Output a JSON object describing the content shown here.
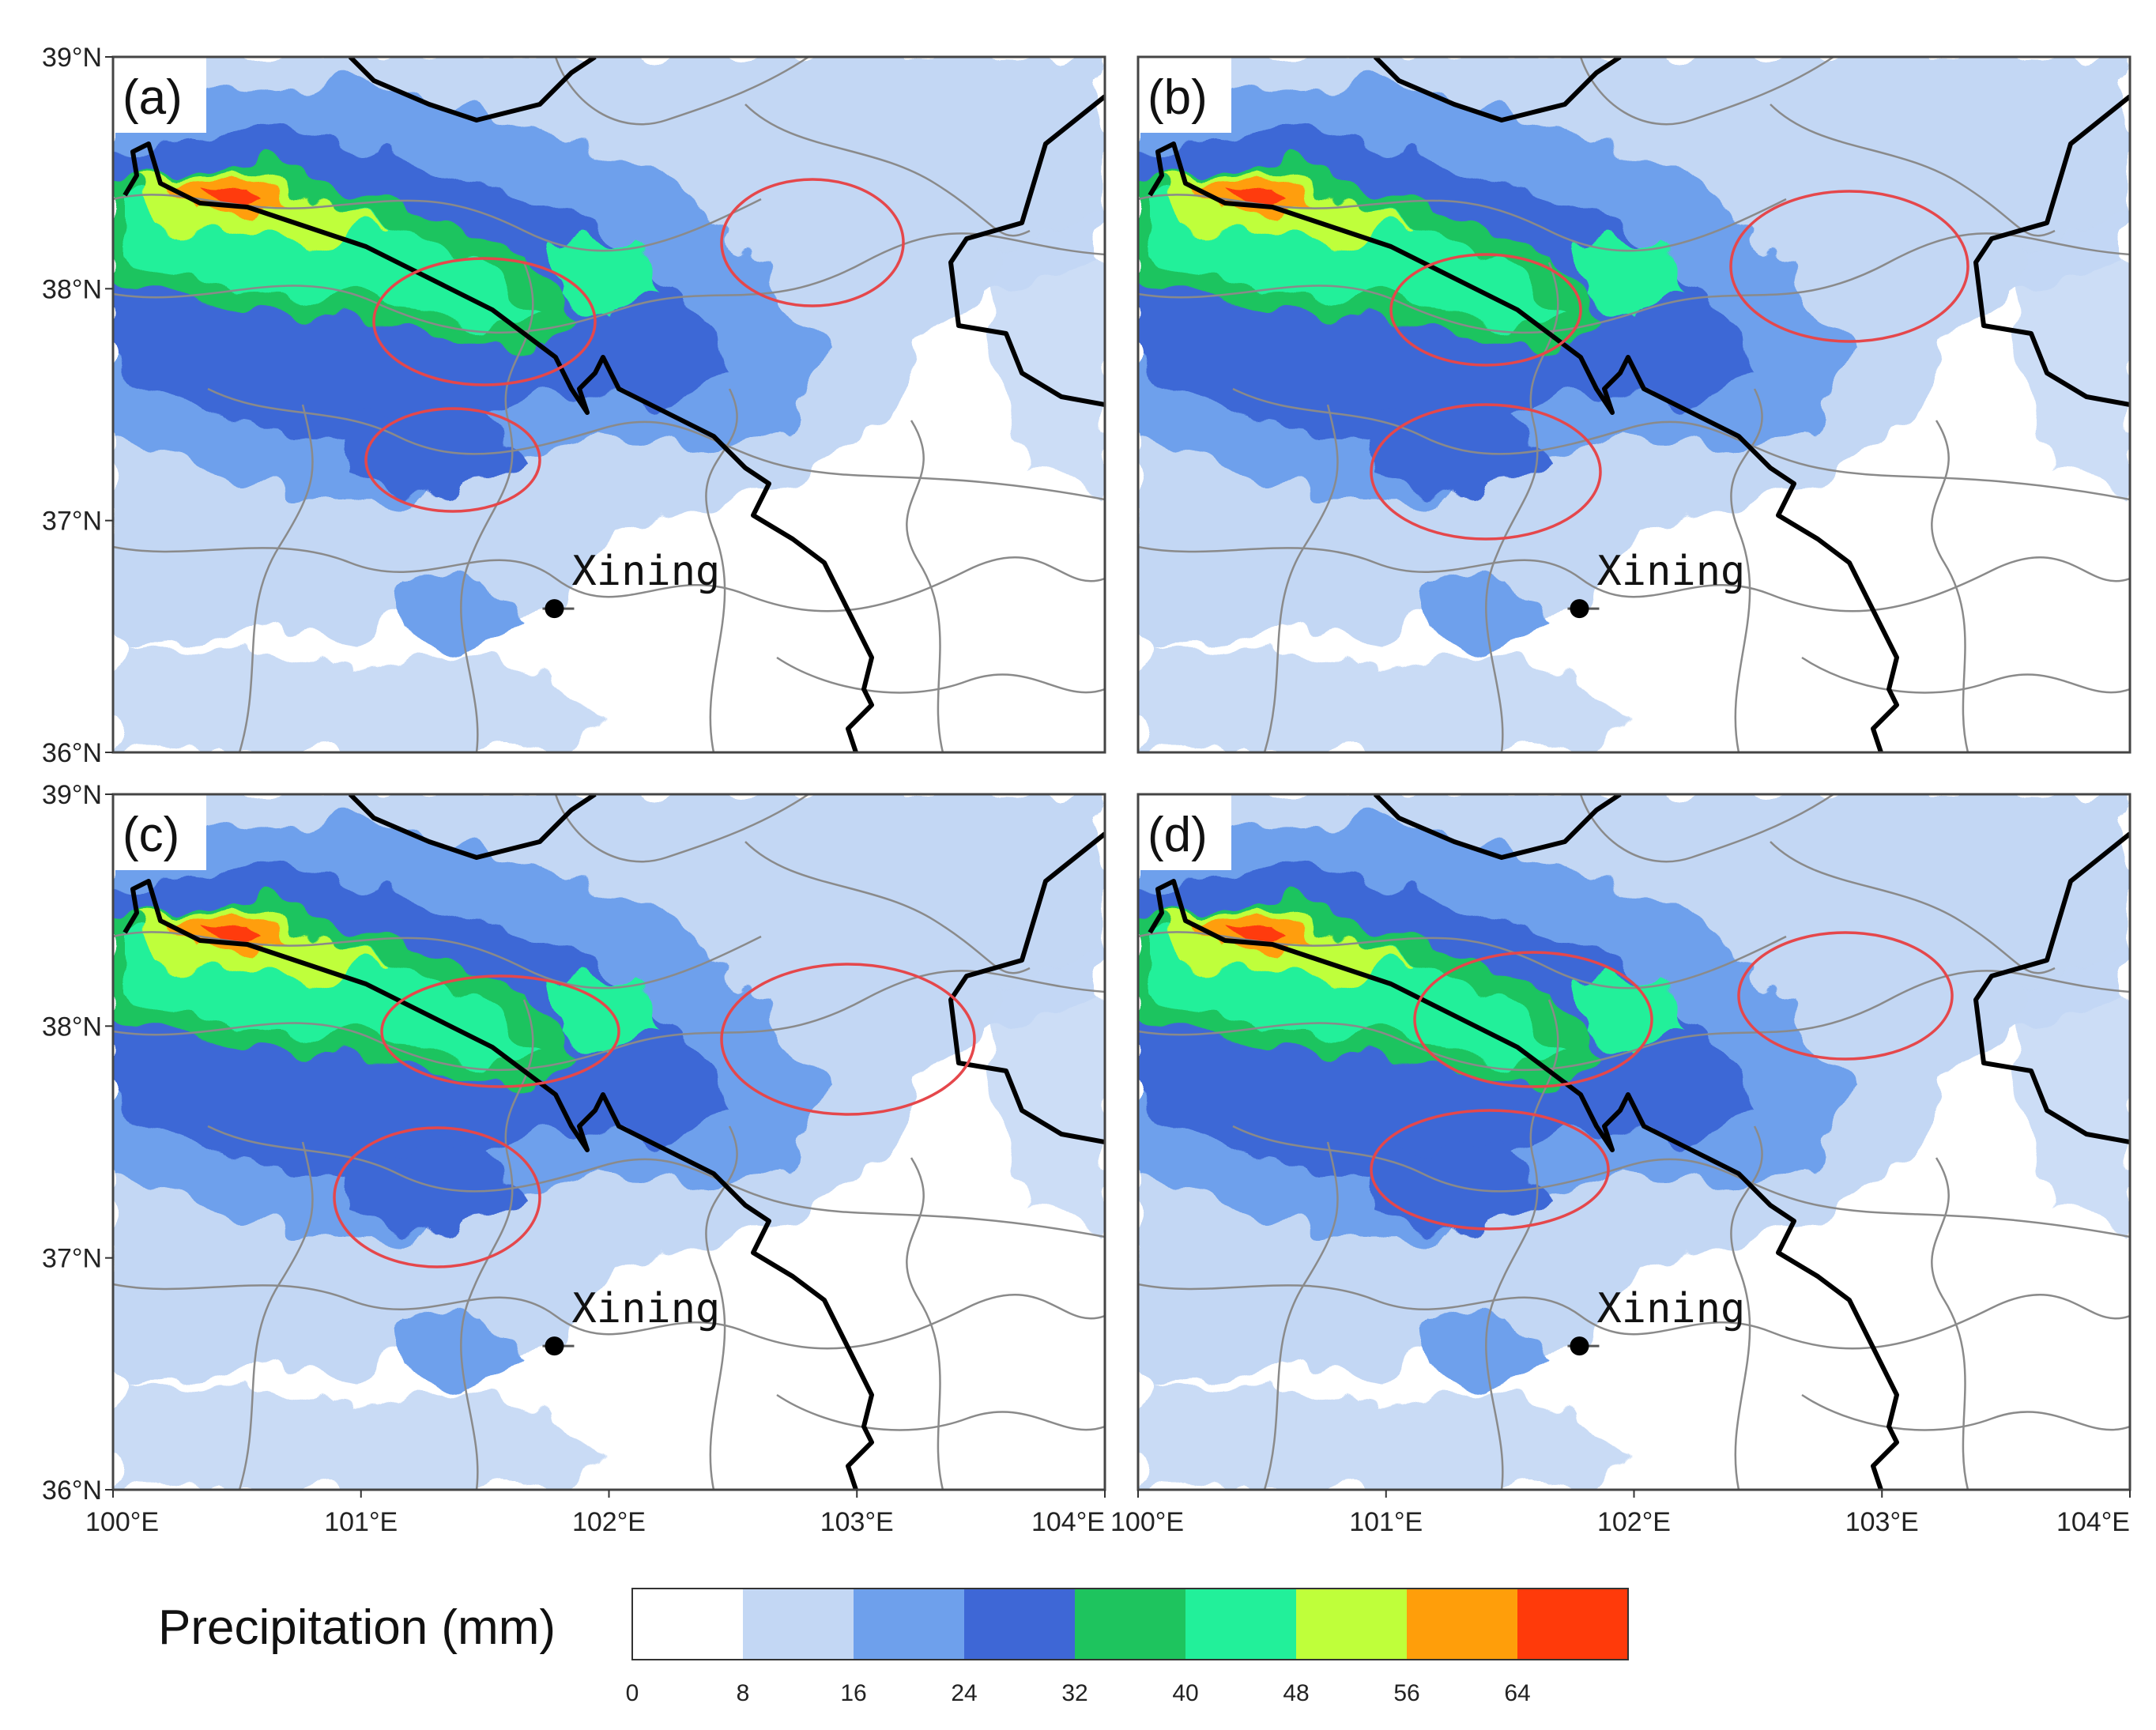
{
  "figure": {
    "panels": [
      {
        "label": "(a)",
        "city": "Xining"
      },
      {
        "label": "(b)",
        "city": "Xining"
      },
      {
        "label": "(c)",
        "city": "Xining"
      },
      {
        "label": "(d)",
        "city": "Xining"
      }
    ],
    "lat_ticks": [
      "39°N",
      "38°N",
      "37°N",
      "36°N"
    ],
    "lon_ticks": [
      "100°E",
      "101°E",
      "102°E",
      "103°E",
      "104°E"
    ],
    "extent": {
      "lon": [
        100,
        104
      ],
      "lat": [
        36,
        39
      ]
    },
    "city_location": {
      "lon": 101.78,
      "lat": 36.62
    },
    "colorbar": {
      "title": "Precipitation (mm)",
      "levels": [
        "0",
        "8",
        "16",
        "24",
        "32",
        "40",
        "48",
        "56",
        "64"
      ],
      "colors": [
        "#ffffff",
        "#c3d7f4",
        "#6ea0ec",
        "#3e67d6",
        "#1ec45e",
        "#22f09a",
        "#bfff3a",
        "#ff9e0a",
        "#ff3a0a"
      ]
    },
    "colors": {
      "circle": "#e5474b",
      "province_border": "#000000",
      "county_border": "#8a8a8a",
      "frame": "#444444"
    }
  }
}
